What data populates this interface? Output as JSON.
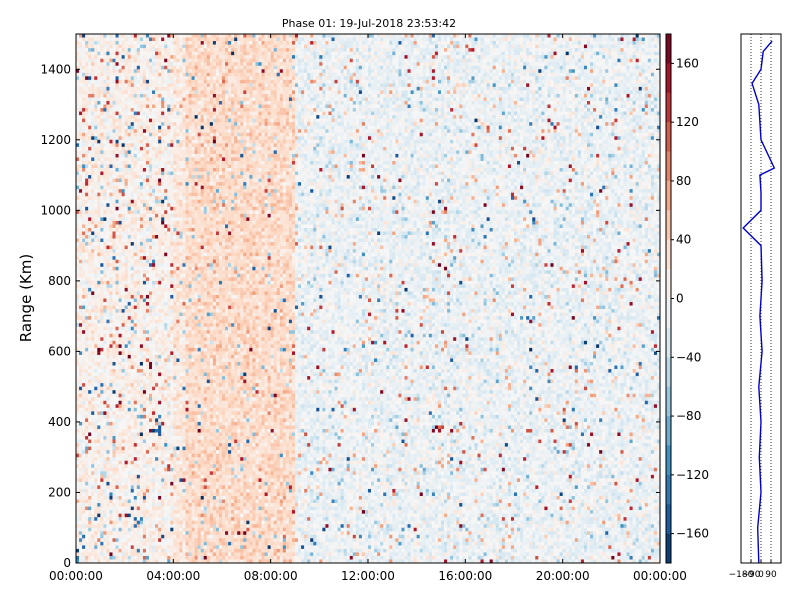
{
  "chart_data": [
    {
      "type": "heatmap",
      "title": "Phase 01: 19-Jul-2018 23:53:42",
      "xlabel": "",
      "ylabel": "Range (Km)",
      "x_ticks": [
        "00:00:00",
        "04:00:00",
        "08:00:00",
        "12:00:00",
        "16:00:00",
        "20:00:00",
        "00:00:00"
      ],
      "x_tick_hours": [
        0,
        4,
        8,
        12,
        16,
        20,
        24
      ],
      "xlim_hours": [
        0,
        24
      ],
      "y_ticks": [
        0,
        200,
        400,
        600,
        800,
        1000,
        1200,
        1400
      ],
      "ylim": [
        0,
        1500
      ],
      "colorbar": {
        "colormap": "RdBu_r",
        "range": [
          -180,
          180
        ],
        "ticks": [
          -160,
          -120,
          -80,
          -40,
          0,
          40,
          80,
          120,
          160
        ],
        "tick_labels": [
          "−160",
          "−120",
          "−80",
          "−40",
          "0",
          "40",
          "80",
          "120",
          "160"
        ]
      },
      "features": [
        {
          "hours": [
            0,
            4
          ],
          "tendency": "mixed, many saturated red and blue cells"
        },
        {
          "hours": [
            4.5,
            9
          ],
          "tendency": "predominantly light positive (salmon) phase"
        },
        {
          "hours": [
            9,
            24
          ],
          "tendency": "predominantly light negative (light blue) phase with scattered outliers"
        }
      ],
      "grid": false
    },
    {
      "type": "line",
      "title": "",
      "xlabel": "",
      "ylabel": "",
      "x_ticks": [
        -180,
        -90,
        0,
        90
      ],
      "x_tick_labels": [
        "−180",
        "−90",
        "0",
        "90"
      ],
      "xlim": [
        -180,
        180
      ],
      "ylim": [
        0,
        1500
      ],
      "reference_lines_x": [
        -90,
        0,
        90
      ],
      "series": [
        {
          "color": "#0000cc",
          "range_km": [
            0,
            100,
            200,
            300,
            400,
            500,
            600,
            700,
            800,
            900,
            950,
            1000,
            1050,
            1100,
            1120,
            1200,
            1300,
            1360,
            1400,
            1450,
            1480
          ],
          "phase_deg": [
            -20,
            -30,
            0,
            -15,
            0,
            -20,
            10,
            -10,
            10,
            0,
            -160,
            0,
            0,
            -10,
            120,
            0,
            -20,
            -80,
            0,
            20,
            100
          ]
        }
      ]
    }
  ],
  "colors": {
    "line_profile": "#0000cc"
  }
}
